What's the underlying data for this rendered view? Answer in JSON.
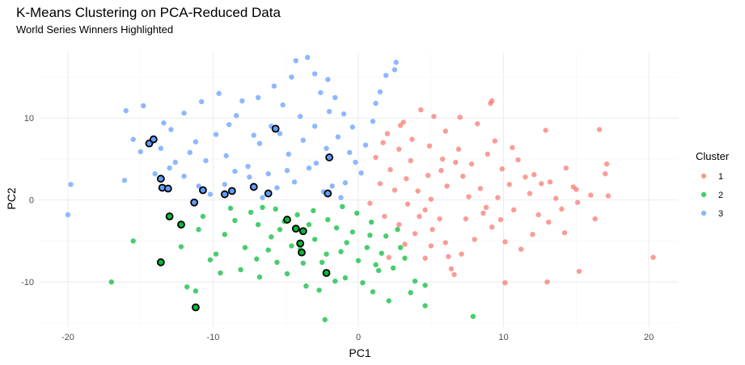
{
  "chart_data": {
    "type": "scatter",
    "title": "K-Means Clustering on PCA-Reduced Data",
    "subtitle": "World Series Winners Highlighted",
    "xlabel": "PC1",
    "ylabel": "PC2",
    "xlim": [
      -22,
      22
    ],
    "ylim": [
      -15.5,
      18
    ],
    "x_ticks": [
      -20,
      -10,
      0,
      10,
      20
    ],
    "y_ticks": [
      -10,
      0,
      10
    ],
    "grid": true,
    "legend": {
      "title": "Cluster",
      "placement": "right",
      "entries": [
        {
          "label": "1",
          "color": "#f8766d"
        },
        {
          "label": "2",
          "color": "#00ba38"
        },
        {
          "label": "3",
          "color": "#619cff"
        }
      ]
    },
    "series": [
      {
        "name": "1",
        "color": "#f8766d",
        "points": [
          [
            1.2,
            5.2
          ],
          [
            2.0,
            8.1
          ],
          [
            3.1,
            9.5
          ],
          [
            4.3,
            11.0
          ],
          [
            5.2,
            10.2
          ],
          [
            6.0,
            8.4
          ],
          [
            7.0,
            10.1
          ],
          [
            8.2,
            9.3
          ],
          [
            9.1,
            11.8
          ],
          [
            2.8,
            6.2
          ],
          [
            3.6,
            4.8
          ],
          [
            4.9,
            6.6
          ],
          [
            5.8,
            5.0
          ],
          [
            6.9,
            6.2
          ],
          [
            7.8,
            4.4
          ],
          [
            8.9,
            5.6
          ],
          [
            9.9,
            3.8
          ],
          [
            11.0,
            4.9
          ],
          [
            12.1,
            3.1
          ],
          [
            13.2,
            2.2
          ],
          [
            14.3,
            3.9
          ],
          [
            15.0,
            1.3
          ],
          [
            16.0,
            0.6
          ],
          [
            17.0,
            3.2
          ],
          [
            17.1,
            4.4
          ],
          [
            15.2,
            -8.7
          ],
          [
            13.0,
            -10.0
          ],
          [
            10.1,
            -10.1
          ],
          [
            12.9,
            8.5
          ],
          [
            1.5,
            2.0
          ],
          [
            2.5,
            1.2
          ],
          [
            3.4,
            -0.5
          ],
          [
            4.2,
            -2.0
          ],
          [
            5.1,
            -3.6
          ],
          [
            6.0,
            -5.2
          ],
          [
            7.1,
            -6.6
          ],
          [
            8.0,
            -4.8
          ],
          [
            9.2,
            -3.3
          ],
          [
            10.1,
            -5.1
          ],
          [
            11.2,
            -6.0
          ],
          [
            12.0,
            -4.2
          ],
          [
            13.1,
            -2.7
          ],
          [
            14.0,
            -1.1
          ],
          [
            15.1,
            -0.3
          ],
          [
            16.3,
            -2.3
          ],
          [
            6.4,
            -8.4
          ],
          [
            6.2,
            -6.9
          ],
          [
            5.0,
            -5.6
          ],
          [
            3.9,
            -4.1
          ],
          [
            2.8,
            -3.0
          ],
          [
            1.8,
            -2.0
          ],
          [
            0.8,
            -0.4
          ],
          [
            2.2,
            3.7
          ],
          [
            3.3,
            2.6
          ],
          [
            4.1,
            1.1
          ],
          [
            5.0,
            0.1
          ],
          [
            6.1,
            1.7
          ],
          [
            7.2,
            2.9
          ],
          [
            8.4,
            1.4
          ],
          [
            9.6,
            0.3
          ],
          [
            10.7,
            -1.2
          ],
          [
            11.8,
            0.8
          ],
          [
            12.6,
            2.0
          ],
          [
            14.2,
            -4.0
          ],
          [
            20.3,
            -7.0
          ],
          [
            17.2,
            0.5
          ],
          [
            6.6,
            -9.1
          ],
          [
            4.6,
            -7.1
          ],
          [
            3.2,
            -5.4
          ],
          [
            2.1,
            -7.0
          ],
          [
            7.4,
            -2.3
          ],
          [
            8.6,
            -1.6
          ],
          [
            9.8,
            -2.4
          ],
          [
            5.7,
            3.6
          ],
          [
            6.7,
            4.6
          ],
          [
            4.8,
            3.0
          ],
          [
            3.7,
            7.4
          ],
          [
            2.9,
            9.1
          ],
          [
            1.7,
            7.0
          ],
          [
            9.4,
            7.2
          ],
          [
            10.6,
            6.4
          ],
          [
            11.5,
            2.8
          ],
          [
            16.6,
            8.6
          ],
          [
            9.2,
            12.1
          ],
          [
            4.6,
            -1.2
          ],
          [
            5.6,
            -2.3
          ],
          [
            7.6,
            0.4
          ],
          [
            8.8,
            -0.9
          ],
          [
            10.4,
            1.9
          ],
          [
            12.4,
            -1.8
          ],
          [
            13.6,
            0.2
          ],
          [
            14.8,
            1.6
          ]
        ]
      },
      {
        "name": "2",
        "color": "#00ba38",
        "points": [
          [
            -17.0,
            -10.0
          ],
          [
            -15.5,
            -5.0
          ],
          [
            -12.2,
            -5.7
          ],
          [
            -11.8,
            -10.6
          ],
          [
            -11.2,
            -11.1
          ],
          [
            -10.2,
            -7.3
          ],
          [
            -9.2,
            -4.2
          ],
          [
            -8.5,
            -2.5
          ],
          [
            -7.8,
            -5.8
          ],
          [
            -6.9,
            -3.0
          ],
          [
            -6.2,
            -6.1
          ],
          [
            -5.4,
            -3.6
          ],
          [
            -4.6,
            -5.6
          ],
          [
            -3.8,
            -7.7
          ],
          [
            -3.0,
            -4.8
          ],
          [
            -2.2,
            -6.6
          ],
          [
            -1.5,
            -3.4
          ],
          [
            -0.8,
            -5.2
          ],
          [
            0.0,
            -7.4
          ],
          [
            0.8,
            -4.3
          ],
          [
            1.6,
            -6.5
          ],
          [
            2.4,
            -8.3
          ],
          [
            3.2,
            -7.1
          ],
          [
            3.9,
            -9.9
          ],
          [
            4.6,
            -10.4
          ],
          [
            -2.3,
            -14.6
          ],
          [
            7.9,
            -14.2
          ],
          [
            1.0,
            -11.2
          ],
          [
            -0.9,
            -9.5
          ],
          [
            -3.6,
            -10.5
          ],
          [
            -9.8,
            -6.6
          ],
          [
            -8.1,
            -8.5
          ],
          [
            -6.8,
            -9.4
          ],
          [
            -5.6,
            -7.6
          ],
          [
            -4.2,
            -1.8
          ],
          [
            -3.1,
            -1.3
          ],
          [
            -2.1,
            -2.4
          ],
          [
            -1.1,
            -0.8
          ],
          [
            -0.1,
            -1.6
          ],
          [
            0.9,
            -2.7
          ],
          [
            1.9,
            -4.4
          ],
          [
            2.7,
            -3.6
          ],
          [
            -7.4,
            -1.5
          ],
          [
            -6.6,
            -0.9
          ],
          [
            -5.7,
            -1.1
          ],
          [
            -10.7,
            -2.0
          ],
          [
            -11.0,
            -3.6
          ],
          [
            -9.5,
            -8.9
          ],
          [
            -8.8,
            -1.0
          ],
          [
            -7.0,
            -7.2
          ],
          [
            -4.9,
            -9.0
          ],
          [
            -2.7,
            -11.0
          ],
          [
            -1.6,
            -9.9
          ],
          [
            0.3,
            -10.1
          ],
          [
            1.4,
            -8.6
          ],
          [
            2.1,
            -12.3
          ],
          [
            3.6,
            -11.3
          ],
          [
            4.6,
            -12.9
          ],
          [
            -1.2,
            -6.3
          ],
          [
            -2.5,
            -7.6
          ],
          [
            -4.0,
            -6.0
          ],
          [
            -6.0,
            -4.5
          ],
          [
            -5.1,
            -2.6
          ],
          [
            -3.4,
            -3.0
          ],
          [
            -0.4,
            -3.9
          ],
          [
            0.6,
            -5.8
          ],
          [
            1.2,
            -7.9
          ],
          [
            2.9,
            -5.8
          ]
        ]
      },
      {
        "name": "3",
        "color": "#619cff",
        "points": [
          [
            -20.0,
            -1.8
          ],
          [
            -19.8,
            1.9
          ],
          [
            -16.1,
            2.4
          ],
          [
            -14.8,
            11.5
          ],
          [
            -13.4,
            9.4
          ],
          [
            -12.9,
            8.6
          ],
          [
            -12.0,
            10.6
          ],
          [
            -11.2,
            7.1
          ],
          [
            -10.5,
            4.8
          ],
          [
            -9.8,
            8.0
          ],
          [
            -9.1,
            5.4
          ],
          [
            -8.4,
            10.3
          ],
          [
            -7.6,
            4.1
          ],
          [
            -6.8,
            6.9
          ],
          [
            -6.0,
            9.0
          ],
          [
            -5.2,
            11.6
          ],
          [
            -4.6,
            15.0
          ],
          [
            -4.3,
            17.0
          ],
          [
            -3.5,
            17.4
          ],
          [
            -3.0,
            15.4
          ],
          [
            -2.6,
            13.1
          ],
          [
            -2.0,
            10.8
          ],
          [
            -1.4,
            7.7
          ],
          [
            -0.6,
            5.8
          ],
          [
            0.2,
            3.3
          ],
          [
            1.0,
            9.6
          ],
          [
            1.5,
            13.2
          ],
          [
            1.9,
            15.2
          ],
          [
            2.6,
            16.8
          ],
          [
            2.5,
            15.9
          ],
          [
            -1.0,
            10.5
          ],
          [
            -2.2,
            6.3
          ],
          [
            -3.4,
            3.9
          ],
          [
            -4.4,
            2.2
          ],
          [
            -5.6,
            1.5
          ],
          [
            -6.6,
            0.3
          ],
          [
            -7.5,
            2.8
          ],
          [
            -8.5,
            3.5
          ],
          [
            -9.2,
            1.9
          ],
          [
            -10.2,
            0.7
          ],
          [
            -11.0,
            1.7
          ],
          [
            -12.0,
            2.9
          ],
          [
            -13.0,
            3.9
          ],
          [
            -14.0,
            3.2
          ],
          [
            -15.0,
            5.9
          ],
          [
            -15.5,
            7.4
          ],
          [
            -16.0,
            10.9
          ],
          [
            -1.8,
            1.7
          ],
          [
            -0.9,
            2.1
          ],
          [
            -2.9,
            4.5
          ],
          [
            -4.8,
            5.6
          ],
          [
            -6.2,
            3.2
          ],
          [
            -7.2,
            7.9
          ],
          [
            -8.0,
            12.1
          ],
          [
            -9.6,
            13.0
          ],
          [
            -5.8,
            13.9
          ],
          [
            -4.0,
            10.2
          ],
          [
            -3.0,
            9.0
          ],
          [
            -1.6,
            12.5
          ],
          [
            0.5,
            6.7
          ],
          [
            -0.2,
            4.6
          ],
          [
            1.2,
            11.8
          ],
          [
            -10.8,
            12.0
          ],
          [
            -11.6,
            5.8
          ],
          [
            -12.6,
            4.6
          ],
          [
            -13.6,
            6.3
          ],
          [
            -6.9,
            12.5
          ],
          [
            -8.9,
            9.2
          ],
          [
            -2.4,
            1.0
          ],
          [
            -1.2,
            0.3
          ],
          [
            -3.8,
            7.3
          ],
          [
            -5.4,
            8.1
          ],
          [
            -4.9,
            3.6
          ],
          [
            -0.4,
            8.9
          ],
          [
            -2.1,
            14.7
          ]
        ]
      }
    ],
    "highlighted": [
      [
        -14.4,
        6.9
      ],
      [
        -14.1,
        7.4
      ],
      [
        -13.6,
        2.6
      ],
      [
        -13.5,
        1.5
      ],
      [
        -13.1,
        1.4
      ],
      [
        -11.3,
        -0.3
      ],
      [
        -10.7,
        1.2
      ],
      [
        -9.2,
        0.7
      ],
      [
        -8.7,
        1.1
      ],
      [
        -7.2,
        1.6
      ],
      [
        -6.2,
        0.8
      ],
      [
        -5.7,
        8.7
      ],
      [
        -2.0,
        5.2
      ],
      [
        -2.1,
        0.8
      ],
      [
        -13.0,
        -2.0
      ],
      [
        -12.2,
        -3.0
      ],
      [
        -13.6,
        -7.6
      ],
      [
        -11.2,
        -13.1
      ],
      [
        -4.9,
        -2.4
      ],
      [
        -4.3,
        -3.5
      ],
      [
        -3.8,
        -3.8
      ],
      [
        -4.0,
        -5.3
      ],
      [
        -3.9,
        -6.4
      ],
      [
        -2.2,
        -8.9
      ]
    ]
  }
}
